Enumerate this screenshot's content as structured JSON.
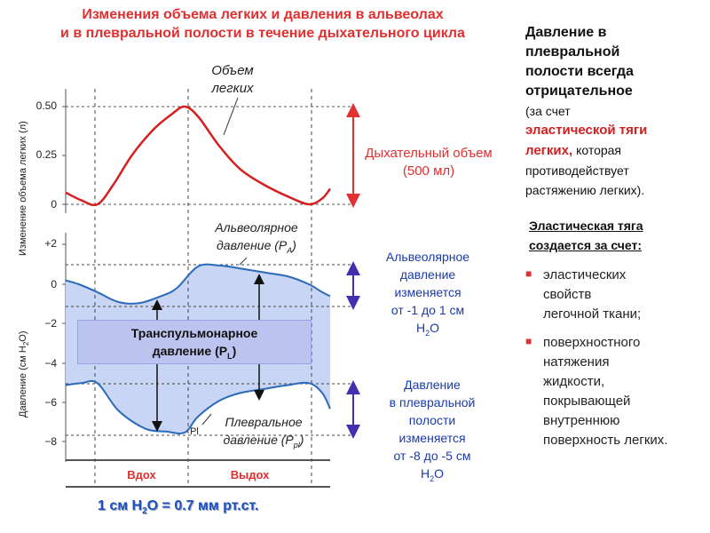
{
  "title": {
    "line1": "Изменения объема легких и давления в альвеолах",
    "line2": "и в плевральной полости в течение дыхательного цикла"
  },
  "chart_data": [
    {
      "type": "line",
      "ylabel": "Изменение объема легких (л)",
      "yticks": [
        "0.50",
        "0.25",
        "0"
      ],
      "ylim": [
        0,
        0.5
      ],
      "series": [
        {
          "name": "Объем легких",
          "color": "#d42020",
          "x": [
            0,
            0.06,
            0.12,
            0.18,
            0.25,
            0.33,
            0.4,
            0.45,
            0.5,
            0.58,
            0.66,
            0.75,
            0.84,
            0.92,
            0.97,
            1.0
          ],
          "values": [
            0.06,
            0.02,
            0.0,
            0.1,
            0.25,
            0.38,
            0.46,
            0.5,
            0.45,
            0.3,
            0.18,
            0.1,
            0.04,
            0.0,
            0.03,
            0.08
          ]
        }
      ],
      "annotations": {
        "series_label": "Объем легких",
        "tidal_volume_label": "Дыхательный объем (500 мл)"
      }
    },
    {
      "type": "line",
      "ylabel": "Давление (см H₂O)",
      "yticks": [
        "+2",
        "0",
        "−2",
        "−4",
        "−6",
        "−8"
      ],
      "ylim": [
        -8,
        2
      ],
      "series": [
        {
          "name": "Альвеолярное давление (PA)",
          "color": "#2a6ab8",
          "x": [
            0,
            0.05,
            0.12,
            0.2,
            0.28,
            0.36,
            0.42,
            0.5,
            0.58,
            0.66,
            0.75,
            0.84,
            0.92,
            0.97,
            1.0
          ],
          "values": [
            0.2,
            0.0,
            -0.4,
            -0.9,
            -0.95,
            -0.6,
            -0.2,
            0.9,
            0.95,
            0.8,
            0.6,
            0.4,
            0.0,
            -0.4,
            -0.6
          ]
        },
        {
          "name": "Плевральное давление (Ppl)",
          "color": "#2a6ab8",
          "x": [
            0,
            0.06,
            0.12,
            0.2,
            0.3,
            0.38,
            0.45,
            0.5,
            0.58,
            0.66,
            0.75,
            0.84,
            0.92,
            0.97,
            1.0
          ],
          "values": [
            -5.1,
            -5.0,
            -5.0,
            -6.4,
            -7.3,
            -7.45,
            -7.5,
            -6.7,
            -5.9,
            -5.5,
            -5.3,
            -5.1,
            -5.0,
            -5.5,
            -6.3
          ]
        }
      ],
      "annotations": {
        "alveolar_label": "Альвеолярное давление (P",
        "alveolar_sub": "A",
        "pleural_label": "Плевральное давление (P",
        "pleural_sub": "pl",
        "pl_mark": "Pl",
        "transpulmonary_line1": "Транспульмонарное",
        "transpulmonary_line2": "давление (P",
        "transpulmonary_sub": "L",
        "alveolar_note": [
          "Альвеолярное",
          "давление",
          "изменяется",
          "от -1 до 1 см",
          "H",
          "2",
          "O"
        ],
        "pleural_note": [
          "Давление",
          "в плевральной",
          "полости",
          "изменяется",
          "от -8 до -5 см",
          "H",
          "2",
          "O"
        ]
      },
      "phases": [
        "Вдох",
        "Выдох"
      ]
    }
  ],
  "bottom_note": "1 см H",
  "bottom_note_sub": "2",
  "bottom_note_rest": "O = 0.7 мм рт.ст.",
  "right_panel": {
    "heading_lines": [
      "Давление в",
      "плевральной",
      "полости всегда",
      "отрицательное"
    ],
    "because_of": "(за счет",
    "elastic_red": "эластической тяги",
    "lungs_red": "легких,",
    "which": "которая",
    "counteracts": "противодействует",
    "stretching": "растяжению легких).",
    "sub_heading_lines": [
      "Эластическая тяга",
      "создается за счет:"
    ],
    "bullets": [
      [
        "эластических",
        "свойств",
        "легочной ткани;"
      ],
      [
        "поверхностного",
        "натяжения",
        "жидкости,",
        "покрывающей",
        "внутреннюю",
        "поверхность легких."
      ]
    ]
  }
}
